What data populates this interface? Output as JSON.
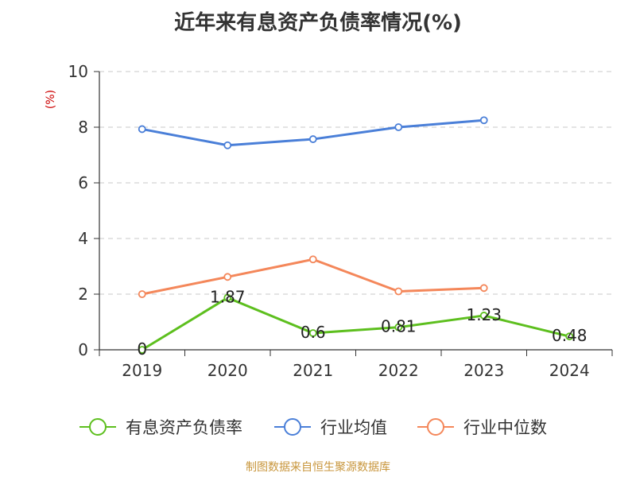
{
  "chart_data": {
    "type": "line",
    "title": "近年来有息资产负债率情况(%)",
    "unit_label": "(%)",
    "categories": [
      "2019",
      "2020",
      "2021",
      "2022",
      "2023",
      "2024"
    ],
    "ylim": [
      0,
      10
    ],
    "yticks": [
      "0",
      "2",
      "4",
      "6",
      "8",
      "10"
    ],
    "grid": true,
    "legend_position": "bottom",
    "series": [
      {
        "name": "有息资产负债率",
        "color": "#5dbf1e",
        "values": [
          0,
          1.87,
          0.6,
          0.81,
          1.23,
          0.48
        ],
        "labels": [
          "0",
          "1.87",
          "0.6",
          "0.81",
          "1.23",
          "0.48"
        ]
      },
      {
        "name": "行业均值",
        "color": "#4a7fd8",
        "values": [
          7.93,
          7.35,
          7.57,
          8.0,
          8.25,
          null
        ]
      },
      {
        "name": "行业中位数",
        "color": "#f4875a",
        "values": [
          2.0,
          2.62,
          3.25,
          2.1,
          2.22,
          null
        ]
      }
    ],
    "source": "制图数据来自恒生聚源数据库"
  }
}
